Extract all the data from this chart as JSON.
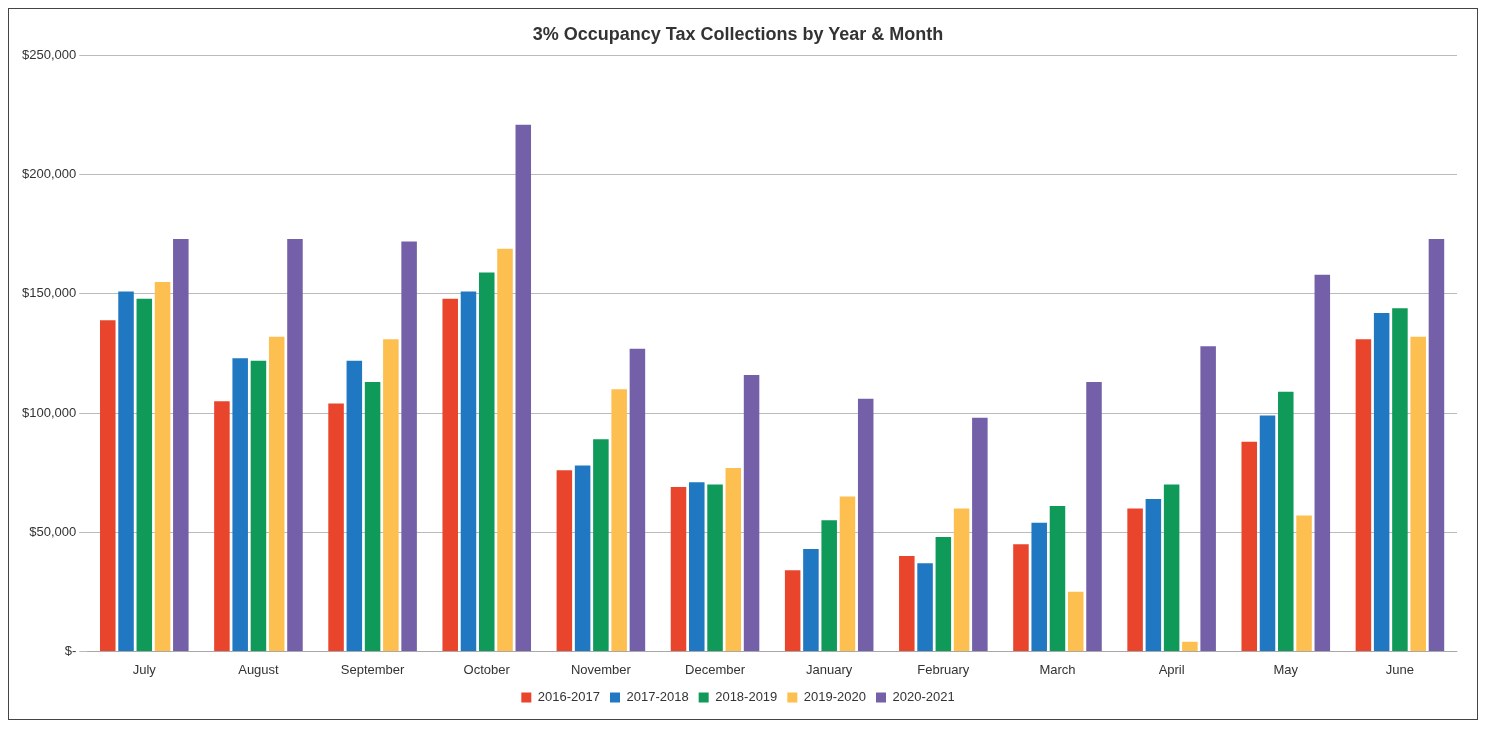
{
  "chart_data": {
    "type": "bar",
    "title": "3% Occupancy Tax Collections by Year & Month",
    "categories": [
      "July",
      "August",
      "September",
      "October",
      "November",
      "December",
      "January",
      "February",
      "March",
      "April",
      "May",
      "June"
    ],
    "series": [
      {
        "name": "2016-2017",
        "color": "#e8452c",
        "values": [
          139000,
          105000,
          104000,
          148000,
          76000,
          69000,
          34000,
          40000,
          45000,
          60000,
          88000,
          131000
        ]
      },
      {
        "name": "2017-2018",
        "color": "#1f78c1",
        "values": [
          151000,
          123000,
          122000,
          151000,
          78000,
          71000,
          43000,
          37000,
          54000,
          64000,
          99000,
          142000
        ]
      },
      {
        "name": "2018-2019",
        "color": "#0f9a5a",
        "values": [
          148000,
          122000,
          113000,
          159000,
          89000,
          70000,
          55000,
          48000,
          61000,
          70000,
          109000,
          144000
        ]
      },
      {
        "name": "2019-2020",
        "color": "#fdbf4f",
        "values": [
          155000,
          132000,
          131000,
          169000,
          110000,
          77000,
          65000,
          60000,
          25000,
          4000,
          57000,
          132000
        ]
      },
      {
        "name": "2020-2021",
        "color": "#7360a8",
        "values": [
          173000,
          173000,
          172000,
          221000,
          127000,
          116000,
          106000,
          98000,
          113000,
          128000,
          158000,
          173000
        ]
      }
    ],
    "ylim": [
      0,
      250000
    ],
    "yticks": [
      {
        "value": 0,
        "label": "$-"
      },
      {
        "value": 50000,
        "label": "$50,000"
      },
      {
        "value": 100000,
        "label": "$100,000"
      },
      {
        "value": 150000,
        "label": "$150,000"
      },
      {
        "value": 200000,
        "label": "$200,000"
      },
      {
        "value": 250000,
        "label": "$250,000"
      }
    ],
    "grid": "y",
    "legend": "bottom"
  }
}
